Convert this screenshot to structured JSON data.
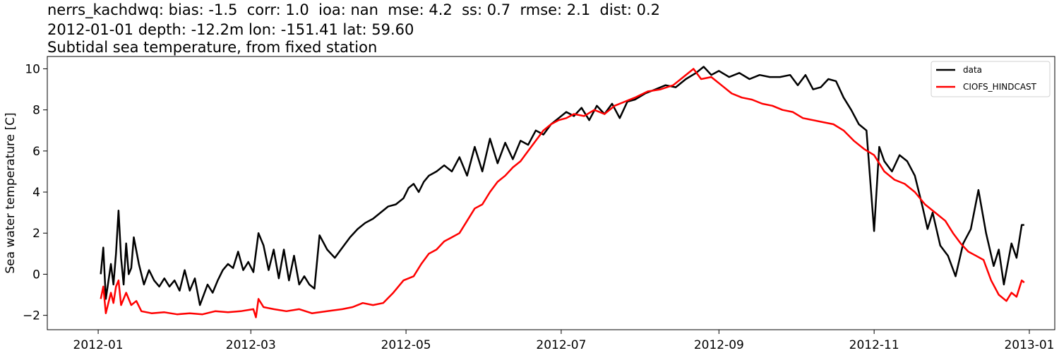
{
  "titles": {
    "line1": "nerrs_kachdwq: bias: -1.5  corr: 1.0  ioa: nan  mse: 4.2  ss: 0.7  rmse: 2.1  dist: 0.2",
    "line2": "2012-01-01 depth: -12.2m lon: -151.41 lat: 59.60",
    "line3": "Subtidal sea temperature, from fixed station"
  },
  "chart_data": {
    "type": "line",
    "ylabel": "Sea water temperature [C]",
    "xlabel": "",
    "xlim": [
      "2011-12-12",
      "2013-01-11"
    ],
    "ylim": [
      -2.7,
      10.6
    ],
    "xticks": [
      "2012-01",
      "2012-03",
      "2012-05",
      "2012-07",
      "2012-09",
      "2012-11",
      "2013-01"
    ],
    "yticks": [
      -2,
      0,
      2,
      4,
      6,
      8,
      10
    ],
    "grid": false,
    "legend_position": "top-right",
    "series": [
      {
        "name": "data",
        "color": "#000000",
        "points": [
          [
            "2012-01-02",
            0.0
          ],
          [
            "2012-01-03",
            1.3
          ],
          [
            "2012-01-04",
            -1.2
          ],
          [
            "2012-01-06",
            0.5
          ],
          [
            "2012-01-07",
            -0.5
          ],
          [
            "2012-01-08",
            1.0
          ],
          [
            "2012-01-09",
            3.1
          ],
          [
            "2012-01-10",
            0.8
          ],
          [
            "2012-01-11",
            -0.5
          ],
          [
            "2012-01-12",
            1.5
          ],
          [
            "2012-01-13",
            0.0
          ],
          [
            "2012-01-14",
            0.3
          ],
          [
            "2012-01-15",
            1.8
          ],
          [
            "2012-01-17",
            0.5
          ],
          [
            "2012-01-19",
            -0.5
          ],
          [
            "2012-01-21",
            0.2
          ],
          [
            "2012-01-23",
            -0.3
          ],
          [
            "2012-01-25",
            -0.6
          ],
          [
            "2012-01-27",
            -0.2
          ],
          [
            "2012-01-29",
            -0.6
          ],
          [
            "2012-01-31",
            -0.3
          ],
          [
            "2012-02-02",
            -0.8
          ],
          [
            "2012-02-04",
            0.2
          ],
          [
            "2012-02-06",
            -0.8
          ],
          [
            "2012-02-08",
            -0.2
          ],
          [
            "2012-02-10",
            -1.5
          ],
          [
            "2012-02-13",
            -0.5
          ],
          [
            "2012-02-15",
            -0.9
          ],
          [
            "2012-02-17",
            -0.3
          ],
          [
            "2012-02-19",
            0.2
          ],
          [
            "2012-02-21",
            0.5
          ],
          [
            "2012-02-23",
            0.3
          ],
          [
            "2012-02-25",
            1.1
          ],
          [
            "2012-02-27",
            0.2
          ],
          [
            "2012-02-29",
            0.6
          ],
          [
            "2012-03-02",
            0.1
          ],
          [
            "2012-03-04",
            2.0
          ],
          [
            "2012-03-06",
            1.4
          ],
          [
            "2012-03-08",
            0.2
          ],
          [
            "2012-03-10",
            1.2
          ],
          [
            "2012-03-12",
            -0.2
          ],
          [
            "2012-03-14",
            1.2
          ],
          [
            "2012-03-16",
            -0.3
          ],
          [
            "2012-03-18",
            0.9
          ],
          [
            "2012-03-20",
            -0.5
          ],
          [
            "2012-03-22",
            -0.1
          ],
          [
            "2012-03-24",
            -0.5
          ],
          [
            "2012-03-26",
            -0.7
          ],
          [
            "2012-03-28",
            1.9
          ],
          [
            "2012-03-31",
            1.2
          ],
          [
            "2012-04-03",
            0.8
          ],
          [
            "2012-04-06",
            1.3
          ],
          [
            "2012-04-09",
            1.8
          ],
          [
            "2012-04-12",
            2.2
          ],
          [
            "2012-04-15",
            2.5
          ],
          [
            "2012-04-18",
            2.7
          ],
          [
            "2012-04-21",
            3.0
          ],
          [
            "2012-04-24",
            3.3
          ],
          [
            "2012-04-27",
            3.4
          ],
          [
            "2012-04-30",
            3.7
          ],
          [
            "2012-05-02",
            4.2
          ],
          [
            "2012-05-04",
            4.4
          ],
          [
            "2012-05-06",
            4.0
          ],
          [
            "2012-05-08",
            4.5
          ],
          [
            "2012-05-10",
            4.8
          ],
          [
            "2012-05-13",
            5.0
          ],
          [
            "2012-05-16",
            5.3
          ],
          [
            "2012-05-19",
            5.0
          ],
          [
            "2012-05-22",
            5.7
          ],
          [
            "2012-05-25",
            4.8
          ],
          [
            "2012-05-28",
            6.2
          ],
          [
            "2012-05-31",
            5.0
          ],
          [
            "2012-06-03",
            6.6
          ],
          [
            "2012-06-06",
            5.4
          ],
          [
            "2012-06-09",
            6.4
          ],
          [
            "2012-06-12",
            5.6
          ],
          [
            "2012-06-15",
            6.5
          ],
          [
            "2012-06-18",
            6.3
          ],
          [
            "2012-06-21",
            7.0
          ],
          [
            "2012-06-24",
            6.8
          ],
          [
            "2012-06-27",
            7.3
          ],
          [
            "2012-06-30",
            7.6
          ],
          [
            "2012-07-03",
            7.9
          ],
          [
            "2012-07-06",
            7.7
          ],
          [
            "2012-07-09",
            8.1
          ],
          [
            "2012-07-12",
            7.5
          ],
          [
            "2012-07-15",
            8.2
          ],
          [
            "2012-07-18",
            7.8
          ],
          [
            "2012-07-21",
            8.3
          ],
          [
            "2012-07-24",
            7.6
          ],
          [
            "2012-07-27",
            8.4
          ],
          [
            "2012-07-30",
            8.5
          ],
          [
            "2012-08-03",
            8.8
          ],
          [
            "2012-08-07",
            9.0
          ],
          [
            "2012-08-11",
            9.2
          ],
          [
            "2012-08-15",
            9.1
          ],
          [
            "2012-08-19",
            9.5
          ],
          [
            "2012-08-23",
            9.8
          ],
          [
            "2012-08-26",
            10.1
          ],
          [
            "2012-08-29",
            9.7
          ],
          [
            "2012-09-01",
            9.9
          ],
          [
            "2012-09-05",
            9.6
          ],
          [
            "2012-09-09",
            9.8
          ],
          [
            "2012-09-13",
            9.5
          ],
          [
            "2012-09-17",
            9.7
          ],
          [
            "2012-09-21",
            9.6
          ],
          [
            "2012-09-25",
            9.6
          ],
          [
            "2012-09-29",
            9.7
          ],
          [
            "2012-10-02",
            9.2
          ],
          [
            "2012-10-05",
            9.7
          ],
          [
            "2012-10-08",
            9.0
          ],
          [
            "2012-10-11",
            9.1
          ],
          [
            "2012-10-14",
            9.5
          ],
          [
            "2012-10-17",
            9.4
          ],
          [
            "2012-10-20",
            8.6
          ],
          [
            "2012-10-23",
            8.0
          ],
          [
            "2012-10-26",
            7.3
          ],
          [
            "2012-10-29",
            7.0
          ],
          [
            "2012-11-01",
            2.1
          ],
          [
            "2012-11-03",
            6.2
          ],
          [
            "2012-11-05",
            5.5
          ],
          [
            "2012-11-08",
            5.0
          ],
          [
            "2012-11-11",
            5.8
          ],
          [
            "2012-11-14",
            5.5
          ],
          [
            "2012-11-17",
            4.8
          ],
          [
            "2012-11-20",
            3.3
          ],
          [
            "2012-11-22",
            2.2
          ],
          [
            "2012-11-24",
            3.0
          ],
          [
            "2012-11-27",
            1.4
          ],
          [
            "2012-11-30",
            0.9
          ],
          [
            "2012-12-03",
            -0.1
          ],
          [
            "2012-12-06",
            1.5
          ],
          [
            "2012-12-09",
            2.2
          ],
          [
            "2012-12-12",
            4.1
          ],
          [
            "2012-12-15",
            2.0
          ],
          [
            "2012-12-18",
            0.4
          ],
          [
            "2012-12-20",
            1.2
          ],
          [
            "2012-12-22",
            -0.5
          ],
          [
            "2012-12-25",
            1.5
          ],
          [
            "2012-12-27",
            0.8
          ],
          [
            "2012-12-29",
            2.4
          ],
          [
            "2012-12-30",
            2.4
          ]
        ]
      },
      {
        "name": "CIOFS_HINDCAST",
        "color": "#ff0000",
        "points": [
          [
            "2012-01-02",
            -1.2
          ],
          [
            "2012-01-03",
            -0.6
          ],
          [
            "2012-01-04",
            -1.9
          ],
          [
            "2012-01-06",
            -0.9
          ],
          [
            "2012-01-07",
            -1.4
          ],
          [
            "2012-01-08",
            -0.6
          ],
          [
            "2012-01-09",
            -0.3
          ],
          [
            "2012-01-10",
            -1.5
          ],
          [
            "2012-01-12",
            -0.9
          ],
          [
            "2012-01-14",
            -1.5
          ],
          [
            "2012-01-16",
            -1.3
          ],
          [
            "2012-01-18",
            -1.8
          ],
          [
            "2012-01-22",
            -1.9
          ],
          [
            "2012-01-27",
            -1.85
          ],
          [
            "2012-02-01",
            -1.95
          ],
          [
            "2012-02-06",
            -1.9
          ],
          [
            "2012-02-11",
            -1.95
          ],
          [
            "2012-02-16",
            -1.8
          ],
          [
            "2012-02-21",
            -1.85
          ],
          [
            "2012-02-26",
            -1.8
          ],
          [
            "2012-03-02",
            -1.7
          ],
          [
            "2012-03-03",
            -2.1
          ],
          [
            "2012-03-04",
            -1.2
          ],
          [
            "2012-03-06",
            -1.6
          ],
          [
            "2012-03-10",
            -1.7
          ],
          [
            "2012-03-15",
            -1.8
          ],
          [
            "2012-03-20",
            -1.7
          ],
          [
            "2012-03-25",
            -1.9
          ],
          [
            "2012-03-31",
            -1.8
          ],
          [
            "2012-04-06",
            -1.7
          ],
          [
            "2012-04-10",
            -1.6
          ],
          [
            "2012-04-14",
            -1.4
          ],
          [
            "2012-04-18",
            -1.5
          ],
          [
            "2012-04-22",
            -1.4
          ],
          [
            "2012-04-26",
            -0.9
          ],
          [
            "2012-04-30",
            -0.3
          ],
          [
            "2012-05-04",
            -0.1
          ],
          [
            "2012-05-07",
            0.5
          ],
          [
            "2012-05-10",
            1.0
          ],
          [
            "2012-05-13",
            1.2
          ],
          [
            "2012-05-16",
            1.6
          ],
          [
            "2012-05-19",
            1.8
          ],
          [
            "2012-05-22",
            2.0
          ],
          [
            "2012-05-25",
            2.6
          ],
          [
            "2012-05-28",
            3.2
          ],
          [
            "2012-05-31",
            3.4
          ],
          [
            "2012-06-03",
            4.0
          ],
          [
            "2012-06-06",
            4.5
          ],
          [
            "2012-06-09",
            4.8
          ],
          [
            "2012-06-12",
            5.2
          ],
          [
            "2012-06-15",
            5.5
          ],
          [
            "2012-06-18",
            6.0
          ],
          [
            "2012-06-21",
            6.5
          ],
          [
            "2012-06-24",
            7.0
          ],
          [
            "2012-06-27",
            7.3
          ],
          [
            "2012-06-30",
            7.5
          ],
          [
            "2012-07-03",
            7.6
          ],
          [
            "2012-07-06",
            7.8
          ],
          [
            "2012-07-10",
            7.7
          ],
          [
            "2012-07-14",
            8.0
          ],
          [
            "2012-07-18",
            7.8
          ],
          [
            "2012-07-22",
            8.2
          ],
          [
            "2012-07-26",
            8.4
          ],
          [
            "2012-07-30",
            8.6
          ],
          [
            "2012-08-04",
            8.9
          ],
          [
            "2012-08-09",
            9.0
          ],
          [
            "2012-08-14",
            9.2
          ],
          [
            "2012-08-18",
            9.6
          ],
          [
            "2012-08-22",
            10.0
          ],
          [
            "2012-08-25",
            9.5
          ],
          [
            "2012-08-29",
            9.6
          ],
          [
            "2012-09-02",
            9.2
          ],
          [
            "2012-09-06",
            8.8
          ],
          [
            "2012-09-10",
            8.6
          ],
          [
            "2012-09-14",
            8.5
          ],
          [
            "2012-09-18",
            8.3
          ],
          [
            "2012-09-22",
            8.2
          ],
          [
            "2012-09-26",
            8.0
          ],
          [
            "2012-09-30",
            7.9
          ],
          [
            "2012-10-04",
            7.6
          ],
          [
            "2012-10-08",
            7.5
          ],
          [
            "2012-10-12",
            7.4
          ],
          [
            "2012-10-16",
            7.3
          ],
          [
            "2012-10-20",
            7.0
          ],
          [
            "2012-10-24",
            6.5
          ],
          [
            "2012-10-28",
            6.1
          ],
          [
            "2012-11-01",
            5.8
          ],
          [
            "2012-11-05",
            5.0
          ],
          [
            "2012-11-09",
            4.6
          ],
          [
            "2012-11-13",
            4.4
          ],
          [
            "2012-11-17",
            4.0
          ],
          [
            "2012-11-21",
            3.4
          ],
          [
            "2012-11-25",
            3.0
          ],
          [
            "2012-11-29",
            2.6
          ],
          [
            "2012-12-02",
            2.0
          ],
          [
            "2012-12-05",
            1.5
          ],
          [
            "2012-12-08",
            1.1
          ],
          [
            "2012-12-11",
            0.9
          ],
          [
            "2012-12-14",
            0.7
          ],
          [
            "2012-12-17",
            -0.3
          ],
          [
            "2012-12-20",
            -1.0
          ],
          [
            "2012-12-23",
            -1.3
          ],
          [
            "2012-12-25",
            -0.9
          ],
          [
            "2012-12-27",
            -1.1
          ],
          [
            "2012-12-29",
            -0.3
          ],
          [
            "2012-12-30",
            -0.4
          ]
        ]
      }
    ]
  }
}
